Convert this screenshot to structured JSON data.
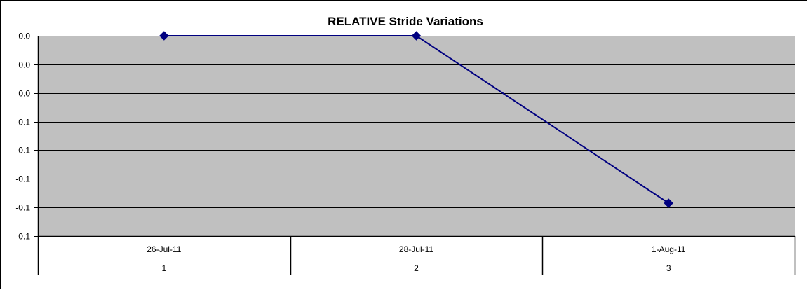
{
  "chart_data": {
    "type": "line",
    "title": "RELATIVE Stride Variations",
    "xlabel": "",
    "ylabel": "",
    "categories": [
      {
        "date": "26-Jul-11",
        "index": "1"
      },
      {
        "date": "28-Jul-11",
        "index": "2"
      },
      {
        "date": "1-Aug-11",
        "index": "3"
      }
    ],
    "series": [
      {
        "values": [
          0.0,
          0.0,
          -0.117
        ]
      }
    ],
    "y_ticks": [
      {
        "value": 0.0,
        "label": "0.0"
      },
      {
        "value": -0.02,
        "label": "0.0"
      },
      {
        "value": -0.04,
        "label": "0.0"
      },
      {
        "value": -0.06,
        "label": "-0.1"
      },
      {
        "value": -0.08,
        "label": "-0.1"
      },
      {
        "value": -0.1,
        "label": "-0.1"
      },
      {
        "value": -0.12,
        "label": "-0.1"
      },
      {
        "value": -0.14,
        "label": "-0.1"
      }
    ],
    "ylim": [
      -0.14,
      0.0
    ],
    "grid": true,
    "legend": "none",
    "colors": {
      "plot_background": "#C0C0C0",
      "series_line": "#000080",
      "gridline": "#000000",
      "border": "#000000",
      "page_background": "#FFFFFF"
    },
    "marker": "diamond"
  }
}
